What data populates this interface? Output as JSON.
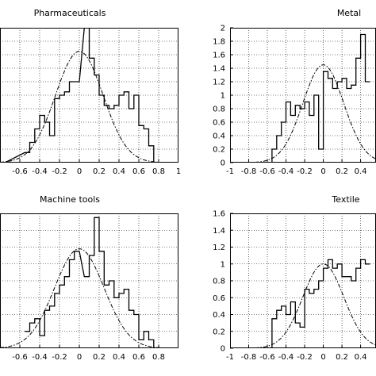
{
  "chart_data": [
    {
      "type": "histogram",
      "title": "Pharmaceuticals",
      "xlim": [
        -1,
        1
      ],
      "ylim": [
        0,
        2
      ],
      "xticks": [
        "-0.6",
        "-0.4",
        "-0.2",
        "0",
        "0.2",
        "0.4",
        "0.6",
        "0.8",
        "1"
      ],
      "yticks": [],
      "grid": true,
      "bin_width": 0.05,
      "hist": [
        [
          -0.8,
          0.0
        ],
        [
          -0.55,
          0.15
        ],
        [
          -0.5,
          0.3
        ],
        [
          -0.45,
          0.5
        ],
        [
          -0.4,
          0.7
        ],
        [
          -0.35,
          0.6
        ],
        [
          -0.3,
          0.4
        ],
        [
          -0.25,
          0.95
        ],
        [
          -0.2,
          1.0
        ],
        [
          -0.15,
          1.05
        ],
        [
          -0.1,
          1.2
        ],
        [
          -0.05,
          1.2
        ],
        [
          0.05,
          2.0
        ],
        [
          0.1,
          1.55
        ],
        [
          0.15,
          1.3
        ],
        [
          0.2,
          1.0
        ],
        [
          0.25,
          0.85
        ],
        [
          0.3,
          0.8
        ],
        [
          0.35,
          0.85
        ],
        [
          0.4,
          1.0
        ],
        [
          0.45,
          1.05
        ],
        [
          0.5,
          0.8
        ],
        [
          0.55,
          1.0
        ],
        [
          0.6,
          0.55
        ],
        [
          0.65,
          0.5
        ],
        [
          0.7,
          0.25
        ],
        [
          0.75,
          0.0
        ]
      ],
      "curve": {
        "mean": 0.0,
        "peak": 1.65,
        "sd": 0.24
      }
    },
    {
      "type": "histogram",
      "title": "Metal",
      "xlim": [
        -1,
        1
      ],
      "ylim": [
        0,
        2
      ],
      "xticks": [
        "-1",
        "-0.8",
        "-0.6",
        "-0.4",
        "-0.2",
        "0",
        "0.2",
        "0.4"
      ],
      "yticks": [
        "0",
        "0.2",
        "0.4",
        "0.6",
        "0.8",
        "1",
        "1.2",
        "1.4",
        "1.6",
        "1.8",
        "2"
      ],
      "grid": true,
      "bin_width": 0.05,
      "hist": [
        [
          -0.6,
          0.0
        ],
        [
          -0.55,
          0.2
        ],
        [
          -0.5,
          0.4
        ],
        [
          -0.45,
          0.6
        ],
        [
          -0.4,
          0.9
        ],
        [
          -0.35,
          0.7
        ],
        [
          -0.3,
          0.85
        ],
        [
          -0.25,
          0.8
        ],
        [
          -0.2,
          0.9
        ],
        [
          -0.15,
          0.7
        ],
        [
          -0.1,
          1.0
        ],
        [
          -0.05,
          0.2
        ],
        [
          0.0,
          1.35
        ],
        [
          0.05,
          1.25
        ],
        [
          0.1,
          1.1
        ],
        [
          0.15,
          1.2
        ],
        [
          0.2,
          1.25
        ],
        [
          0.25,
          1.1
        ],
        [
          0.3,
          1.15
        ],
        [
          0.35,
          1.55
        ],
        [
          0.4,
          1.9
        ],
        [
          0.45,
          1.2
        ]
      ],
      "curve": {
        "mean": 0.0,
        "peak": 1.45,
        "sd": 0.22
      }
    },
    {
      "type": "histogram",
      "title": "Machine tools",
      "xlim": [
        -1,
        1
      ],
      "ylim": [
        0,
        1.6
      ],
      "xticks": [
        "-0.6",
        "-0.4",
        "-0.2",
        "0",
        "0.2",
        "0.4",
        "0.6",
        "0.8"
      ],
      "yticks": [],
      "grid": true,
      "bin_width": 0.05,
      "hist": [
        [
          -0.55,
          0.2
        ],
        [
          -0.5,
          0.3
        ],
        [
          -0.45,
          0.35
        ],
        [
          -0.4,
          0.15
        ],
        [
          -0.35,
          0.45
        ],
        [
          -0.3,
          0.5
        ],
        [
          -0.25,
          0.65
        ],
        [
          -0.2,
          0.75
        ],
        [
          -0.15,
          0.85
        ],
        [
          -0.1,
          1.05
        ],
        [
          -0.05,
          1.15
        ],
        [
          0.05,
          0.85
        ],
        [
          0.1,
          1.1
        ],
        [
          0.15,
          1.55
        ],
        [
          0.2,
          1.15
        ],
        [
          0.25,
          0.75
        ],
        [
          0.3,
          0.8
        ],
        [
          0.35,
          0.6
        ],
        [
          0.4,
          0.65
        ],
        [
          0.45,
          0.7
        ],
        [
          0.5,
          0.45
        ],
        [
          0.55,
          0.4
        ],
        [
          0.6,
          0.1
        ],
        [
          0.65,
          0.2
        ],
        [
          0.7,
          0.1
        ],
        [
          0.75,
          0.0
        ]
      ],
      "curve": {
        "mean": 0.0,
        "peak": 1.18,
        "sd": 0.25
      }
    },
    {
      "type": "histogram",
      "title": "Textile",
      "xlim": [
        -1,
        1
      ],
      "ylim": [
        0,
        1.6
      ],
      "xticks": [
        "-1",
        "-0.8",
        "-0.6",
        "-0.4",
        "-0.2",
        "0",
        "0.2",
        "0.4"
      ],
      "yticks": [
        "0",
        "0.2",
        "0.4",
        "0.6",
        "0.8",
        "1",
        "1.2",
        "1.4",
        "1.6"
      ],
      "grid": true,
      "bin_width": 0.05,
      "hist": [
        [
          -0.6,
          0.0
        ],
        [
          -0.55,
          0.35
        ],
        [
          -0.5,
          0.45
        ],
        [
          -0.45,
          0.5
        ],
        [
          -0.4,
          0.4
        ],
        [
          -0.35,
          0.55
        ],
        [
          -0.3,
          0.3
        ],
        [
          -0.25,
          0.25
        ],
        [
          -0.2,
          0.7
        ],
        [
          -0.15,
          0.65
        ],
        [
          -0.1,
          0.7
        ],
        [
          -0.05,
          0.8
        ],
        [
          0.0,
          0.95
        ],
        [
          0.05,
          1.05
        ],
        [
          0.1,
          0.95
        ],
        [
          0.15,
          1.0
        ],
        [
          0.2,
          0.85
        ],
        [
          0.25,
          0.85
        ],
        [
          0.3,
          0.8
        ],
        [
          0.35,
          0.95
        ],
        [
          0.4,
          1.05
        ],
        [
          0.45,
          1.0
        ]
      ],
      "curve": {
        "mean": 0.0,
        "peak": 1.0,
        "sd": 0.22
      }
    }
  ]
}
